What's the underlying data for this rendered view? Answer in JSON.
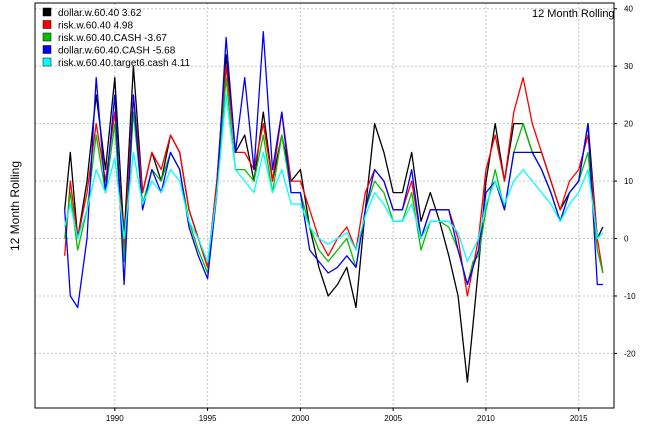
{
  "chart_data": {
    "type": "line",
    "title": "12 Month Rolling",
    "xlabel": "",
    "ylabel": "12 Month Rolling",
    "xlim": [
      1985.7,
      2016.9
    ],
    "ylim": [
      -29.5,
      41
    ],
    "x_ticks": [
      1990,
      1995,
      2000,
      2005,
      2010,
      2015
    ],
    "y_ticks": [
      -20,
      -10,
      0,
      10,
      20,
      30,
      40
    ],
    "y_axis_position": "right",
    "grid": true,
    "legend_position": "top-left",
    "series": [
      {
        "name": "dollar.w.60.40  3.62",
        "color": "#000000",
        "x": [
          1987.3,
          1987.6,
          1988.0,
          1988.5,
          1989.0,
          1989.5,
          1990.0,
          1990.5,
          1991.0,
          1991.5,
          1992.0,
          1992.5,
          1993.0,
          1993.5,
          1994.0,
          1994.5,
          1995.0,
          1995.5,
          1996.0,
          1996.5,
          1997.0,
          1997.5,
          1998.0,
          1998.5,
          1999.0,
          1999.5,
          2000.0,
          2000.5,
          2001.0,
          2001.5,
          2002.0,
          2002.5,
          2003.0,
          2003.5,
          2004.0,
          2004.5,
          2005.0,
          2005.5,
          2006.0,
          2006.5,
          2007.0,
          2007.5,
          2008.0,
          2008.5,
          2009.0,
          2009.3,
          2009.6,
          2010.0,
          2010.5,
          2011.0,
          2011.5,
          2012.0,
          2012.5,
          2013.0,
          2013.5,
          2014.0,
          2014.5,
          2015.0,
          2015.5,
          2016.0,
          2016.3
        ],
        "y": [
          5,
          15,
          0,
          10,
          25,
          12,
          28,
          0,
          30,
          8,
          15,
          10,
          18,
          15,
          5,
          0,
          -5,
          10,
          32,
          15,
          18,
          10,
          22,
          10,
          18,
          10,
          12,
          2,
          -5,
          -10,
          -8,
          -5,
          -12,
          5,
          20,
          15,
          8,
          8,
          15,
          3,
          8,
          3,
          -3,
          -10,
          -25,
          -15,
          -5,
          10,
          20,
          10,
          20,
          20,
          15,
          15,
          10,
          5,
          8,
          10,
          20,
          0,
          2
        ]
      },
      {
        "name": "risk.w.60.40  4.98",
        "color": "#ff0000",
        "x": [
          1987.3,
          1987.6,
          1988.0,
          1988.5,
          1989.0,
          1989.5,
          1990.0,
          1990.5,
          1991.0,
          1991.5,
          1992.0,
          1992.5,
          1993.0,
          1993.5,
          1994.0,
          1994.5,
          1995.0,
          1995.5,
          1996.0,
          1996.5,
          1997.0,
          1997.5,
          1998.0,
          1998.5,
          1999.0,
          1999.5,
          2000.0,
          2000.5,
          2001.0,
          2001.5,
          2002.0,
          2002.5,
          2003.0,
          2003.5,
          2004.0,
          2004.5,
          2005.0,
          2005.5,
          2006.0,
          2006.5,
          2007.0,
          2007.5,
          2008.0,
          2008.5,
          2009.0,
          2009.3,
          2009.6,
          2010.0,
          2010.5,
          2011.0,
          2011.5,
          2012.0,
          2012.5,
          2013.0,
          2013.5,
          2014.0,
          2014.5,
          2015.0,
          2015.5,
          2016.0,
          2016.3
        ],
        "y": [
          -3,
          10,
          0,
          8,
          20,
          10,
          22,
          -2,
          25,
          8,
          15,
          12,
          18,
          15,
          5,
          0,
          -5,
          10,
          30,
          15,
          15,
          12,
          20,
          10,
          22,
          10,
          10,
          5,
          0,
          -3,
          0,
          2,
          -2,
          8,
          12,
          10,
          5,
          5,
          10,
          0,
          5,
          5,
          5,
          0,
          -10,
          -5,
          0,
          12,
          18,
          10,
          22,
          28,
          20,
          15,
          10,
          5,
          10,
          12,
          18,
          0,
          -6
        ]
      },
      {
        "name": "risk.w.60.40.CASH -3.67",
        "color": "#00c000",
        "x": [
          1987.3,
          1987.6,
          1988.0,
          1988.5,
          1989.0,
          1989.5,
          1990.0,
          1990.5,
          1991.0,
          1991.5,
          1992.0,
          1992.5,
          1993.0,
          1993.5,
          1994.0,
          1994.5,
          1995.0,
          1995.5,
          1996.0,
          1996.5,
          1997.0,
          1997.5,
          1998.0,
          1998.5,
          1999.0,
          1999.5,
          2000.0,
          2000.5,
          2001.0,
          2001.5,
          2002.0,
          2002.5,
          2003.0,
          2003.5,
          2004.0,
          2004.5,
          2005.0,
          2005.5,
          2006.0,
          2006.5,
          2007.0,
          2007.5,
          2008.0,
          2008.5,
          2009.0,
          2009.3,
          2009.6,
          2010.0,
          2010.5,
          2011.0,
          2011.5,
          2012.0,
          2012.5,
          2013.0,
          2013.5,
          2014.0,
          2014.5,
          2015.0,
          2015.5,
          2016.0,
          2016.3
        ],
        "y": [
          0,
          8,
          -2,
          5,
          18,
          8,
          20,
          -4,
          22,
          6,
          12,
          10,
          15,
          12,
          3,
          -2,
          -6,
          8,
          28,
          12,
          12,
          10,
          18,
          8,
          18,
          8,
          8,
          2,
          -2,
          -4,
          -2,
          0,
          -5,
          5,
          10,
          8,
          3,
          3,
          8,
          -2,
          3,
          3,
          2,
          -2,
          -8,
          -4,
          -3,
          5,
          12,
          5,
          15,
          20,
          15,
          12,
          8,
          3,
          8,
          10,
          15,
          -2,
          -6
        ]
      },
      {
        "name": "dollar.w.60.40.CASH -5.68",
        "color": "#0000ff",
        "x": [
          1987.3,
          1987.6,
          1988.0,
          1988.5,
          1989.0,
          1989.5,
          1990.0,
          1990.5,
          1991.0,
          1991.5,
          1992.0,
          1992.5,
          1993.0,
          1993.5,
          1994.0,
          1994.5,
          1995.0,
          1995.5,
          1996.0,
          1996.5,
          1997.0,
          1997.5,
          1998.0,
          1998.5,
          1999.0,
          1999.5,
          2000.0,
          2000.5,
          2001.0,
          2001.5,
          2002.0,
          2002.5,
          2003.0,
          2003.5,
          2004.0,
          2004.5,
          2005.0,
          2005.5,
          2006.0,
          2006.5,
          2007.0,
          2007.5,
          2008.0,
          2008.5,
          2009.0,
          2009.3,
          2009.6,
          2010.0,
          2010.5,
          2011.0,
          2011.5,
          2012.0,
          2012.5,
          2013.0,
          2013.5,
          2014.0,
          2014.5,
          2015.0,
          2015.5,
          2016.0,
          2016.3
        ],
        "y": [
          5,
          -10,
          -12,
          0,
          28,
          8,
          25,
          -8,
          25,
          5,
          12,
          8,
          15,
          12,
          2,
          -3,
          -7,
          8,
          35,
          15,
          28,
          12,
          36,
          12,
          22,
          8,
          8,
          -2,
          -4,
          -6,
          -5,
          -3,
          -5,
          5,
          12,
          10,
          5,
          5,
          12,
          0,
          5,
          5,
          5,
          -2,
          -8,
          -5,
          -2,
          8,
          10,
          5,
          15,
          15,
          15,
          12,
          8,
          3,
          8,
          10,
          20,
          -8,
          -8
        ]
      },
      {
        "name": "risk.w.60.40.target6.cash  4.11",
        "color": "#00ffff",
        "x": [
          1987.3,
          1987.6,
          1988.0,
          1988.5,
          1989.0,
          1989.5,
          1990.0,
          1990.5,
          1991.0,
          1991.5,
          1992.0,
          1992.5,
          1993.0,
          1993.5,
          1994.0,
          1994.5,
          1995.0,
          1995.5,
          1996.0,
          1996.5,
          1997.0,
          1997.5,
          1998.0,
          1998.5,
          1999.0,
          1999.5,
          2000.0,
          2000.5,
          2001.0,
          2001.5,
          2002.0,
          2002.5,
          2003.0,
          2003.5,
          2004.0,
          2004.5,
          2005.0,
          2005.5,
          2006.0,
          2006.5,
          2007.0,
          2007.5,
          2008.0,
          2008.5,
          2009.0,
          2009.3,
          2009.6,
          2010.0,
          2010.5,
          2011.0,
          2011.5,
          2012.0,
          2012.5,
          2013.0,
          2013.5,
          2014.0,
          2014.5,
          2015.0,
          2015.5,
          2016.0,
          2016.3
        ],
        "y": [
          2,
          6,
          0,
          5,
          12,
          8,
          14,
          0,
          15,
          6,
          10,
          8,
          12,
          10,
          3,
          0,
          -4,
          8,
          25,
          12,
          10,
          8,
          15,
          8,
          12,
          6,
          6,
          2,
          0,
          -1,
          0,
          1,
          -2,
          4,
          8,
          6,
          3,
          3,
          6,
          0,
          3,
          3,
          3,
          1,
          -4,
          -2,
          0,
          6,
          10,
          6,
          10,
          12,
          10,
          8,
          6,
          3,
          6,
          8,
          12,
          0,
          1
        ]
      }
    ]
  }
}
